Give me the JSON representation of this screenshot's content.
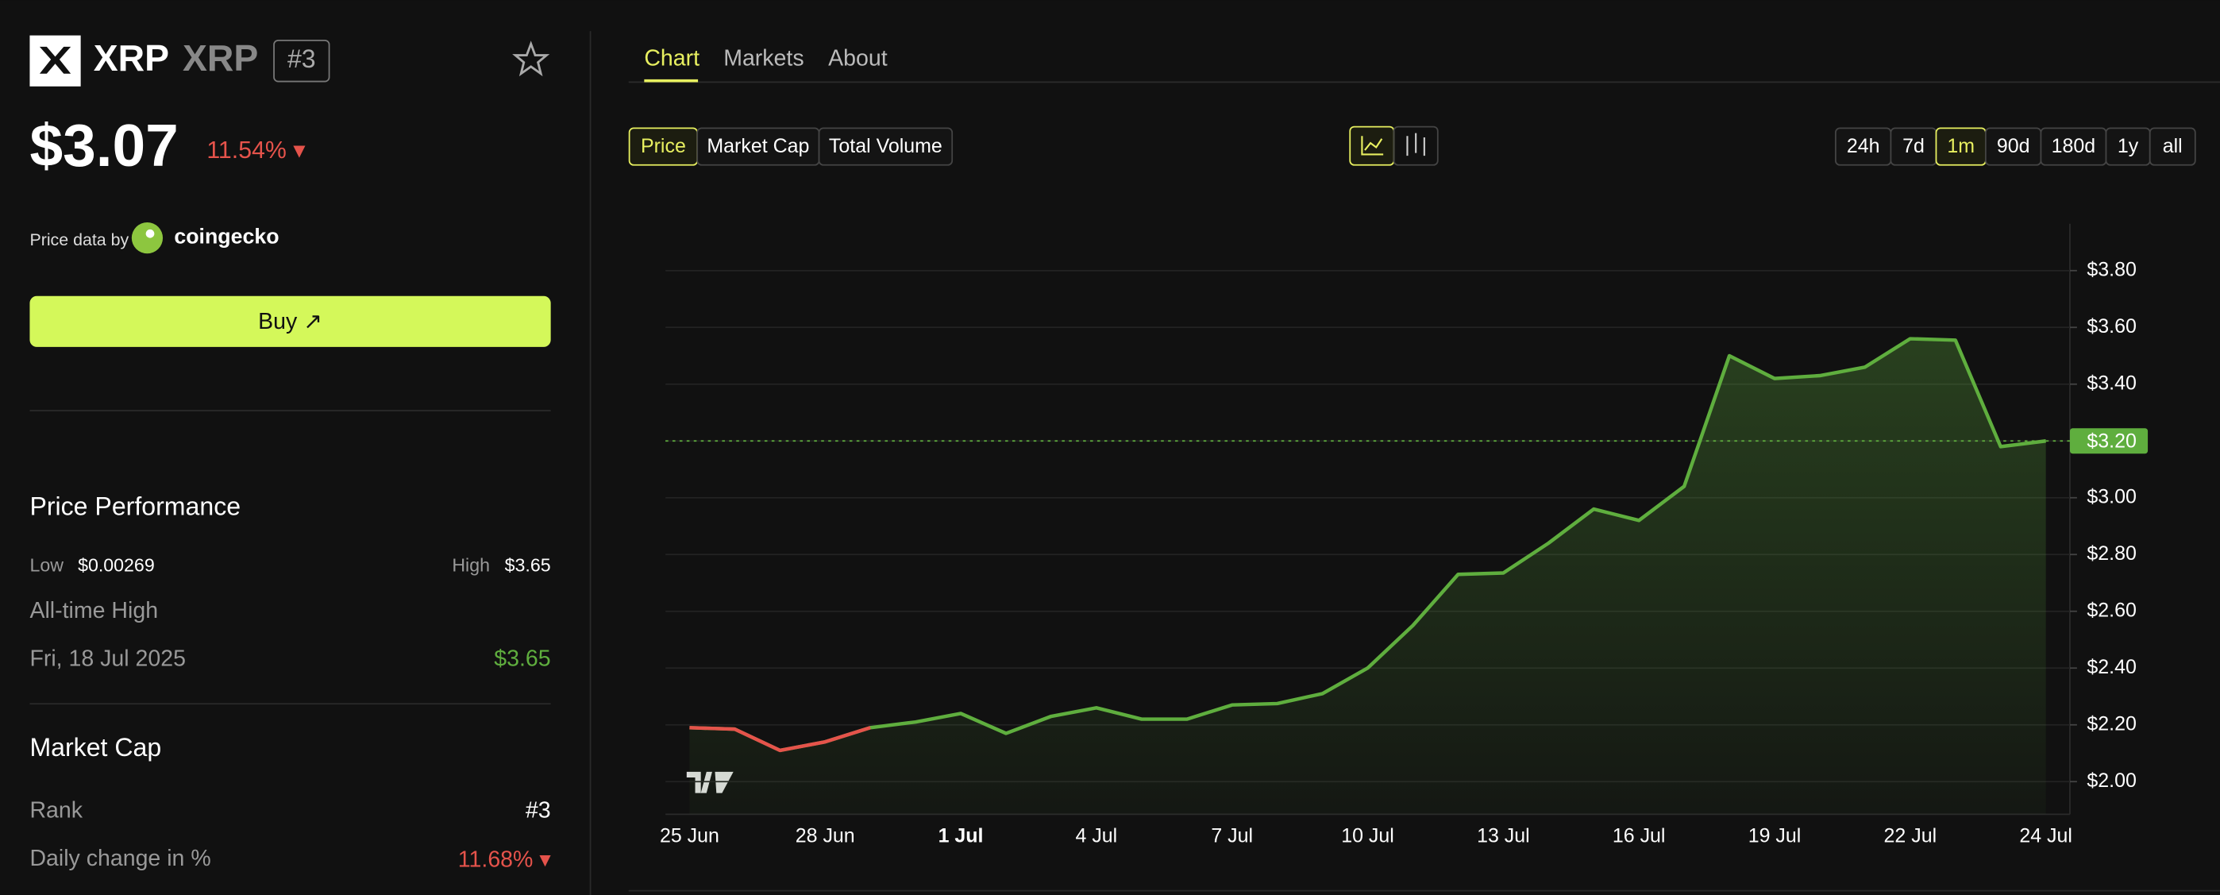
{
  "header": {
    "symbol": "XRP",
    "name": "XRP",
    "rank": "#3",
    "price": "$3.07",
    "change": "11.54% ▾",
    "price_data_by": "Price data by",
    "provider": "coingecko",
    "buy": "Buy ↗"
  },
  "performance": {
    "title": "Price Performance",
    "low_label": "Low",
    "low": "$0.00269",
    "high_label": "High",
    "high": "$3.65",
    "ath_label": "All-time High",
    "ath_date": "Fri, 18 Jul 2025",
    "ath_value": "$3.65"
  },
  "market_cap": {
    "title": "Market Cap",
    "rank_label": "Rank",
    "rank": "#3",
    "daily_label": "Daily change in %",
    "daily": "11.68% ▾"
  },
  "tabs": [
    "Chart",
    "Markets",
    "About"
  ],
  "metric_buttons": [
    "Price",
    "Market Cap",
    "Total Volume"
  ],
  "range_buttons": [
    "24h",
    "7d",
    "1m",
    "90d",
    "180d",
    "1y",
    "all"
  ],
  "chart_data": {
    "type": "line",
    "categories": [
      "25 Jun",
      null,
      null,
      "28 Jun",
      null,
      null,
      "1 Jul",
      null,
      null,
      "4 Jul",
      null,
      null,
      "7 Jul",
      null,
      null,
      "10 Jul",
      null,
      null,
      "13 Jul",
      null,
      null,
      "16 Jul",
      null,
      null,
      "19 Jul",
      null,
      null,
      "22 Jul",
      null,
      null,
      "24 Jul"
    ],
    "series": [
      {
        "name": "Price",
        "color": "#5fae3e",
        "negative_color": "#e5534b",
        "values": [
          2.19,
          2.185,
          2.11,
          2.14,
          2.19,
          2.21,
          2.24,
          2.17,
          2.23,
          2.26,
          2.22,
          2.22,
          2.27,
          2.275,
          2.31,
          2.4,
          2.55,
          2.73,
          2.735,
          2.84,
          2.96,
          2.92,
          3.04,
          3.5,
          3.42,
          3.43,
          3.46,
          3.56,
          3.555,
          3.18,
          3.2
        ]
      }
    ],
    "ylim": [
      1.885,
      3.965
    ],
    "yticks": [
      {
        "value": 2.0,
        "label": "$2.00"
      },
      {
        "value": 2.2,
        "label": "$2.20"
      },
      {
        "value": 2.4,
        "label": "$2.40"
      },
      {
        "value": 2.6,
        "label": "$2.60"
      },
      {
        "value": 2.8,
        "label": "$2.80"
      },
      {
        "value": 3.0,
        "label": "$3.00"
      },
      {
        "value": 3.2,
        "label": "$3.20"
      },
      {
        "value": 3.4,
        "label": "$3.40"
      },
      {
        "value": 3.6,
        "label": "$3.60"
      },
      {
        "value": 3.8,
        "label": "$3.80"
      }
    ],
    "last_price": {
      "value": 3.2,
      "label": "$3.20"
    },
    "grid": true
  }
}
